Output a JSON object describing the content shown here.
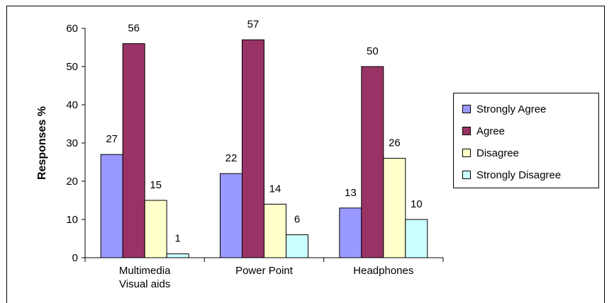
{
  "chart_data": {
    "type": "bar",
    "title": "",
    "xlabel": "",
    "ylabel": "Responses %",
    "ylim": [
      0,
      60
    ],
    "yticks": [
      0,
      10,
      20,
      30,
      40,
      50,
      60
    ],
    "categories": [
      [
        "Multimedia",
        "Visual aids"
      ],
      [
        "Power Point"
      ],
      [
        "Headphones"
      ]
    ],
    "series": [
      {
        "name": "Strongly Agree",
        "color": "#9999ff",
        "values": [
          27,
          22,
          13
        ]
      },
      {
        "name": "Agree",
        "color": "#993366",
        "values": [
          56,
          57,
          50
        ]
      },
      {
        "name": "Disagree",
        "color": "#ffffcc",
        "values": [
          15,
          14,
          26
        ]
      },
      {
        "name": "Strongly Disagree",
        "color": "#ccffff",
        "values": [
          1,
          6,
          10
        ]
      }
    ],
    "legend_position": "right",
    "grid": false
  }
}
